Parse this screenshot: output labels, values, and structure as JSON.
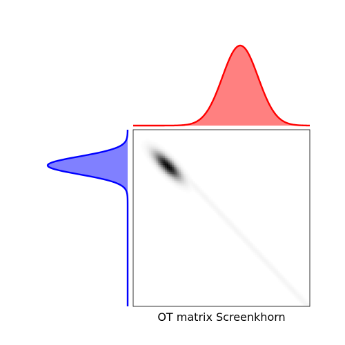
{
  "chart_data": [
    {
      "type": "area",
      "panel": "source-distribution",
      "orientation": "vertical",
      "series_name": "",
      "distribution": "gaussian",
      "mean_index": 20,
      "std_index": 5,
      "n_points": 100,
      "peak_height_fraction": 1.0,
      "line_color": "#0000ff",
      "fill_color": "#8080ff"
    },
    {
      "type": "area",
      "panel": "target-distribution",
      "orientation": "horizontal",
      "series_name": "",
      "distribution": "gaussian",
      "mean_index": 60,
      "std_index": 10,
      "n_points": 100,
      "peak_height_fraction": 1.0,
      "line_color": "#ff0000",
      "fill_color": "#ff8080"
    },
    {
      "type": "heatmap",
      "panel": "ot-matrix",
      "title": "OT matrix Screenkhorn",
      "n_rows": 100,
      "n_cols": 100,
      "colormap": "gray_r",
      "dominant_cluster": {
        "row_center": 20,
        "col_center": 19,
        "extent_rows": [
          12,
          28
        ],
        "extent_cols": [
          9,
          31
        ]
      },
      "faint_band": {
        "from": [
          28,
          31
        ],
        "to": [
          99,
          98
        ],
        "intensity": 0.04
      },
      "axis_ticks": false
    }
  ]
}
